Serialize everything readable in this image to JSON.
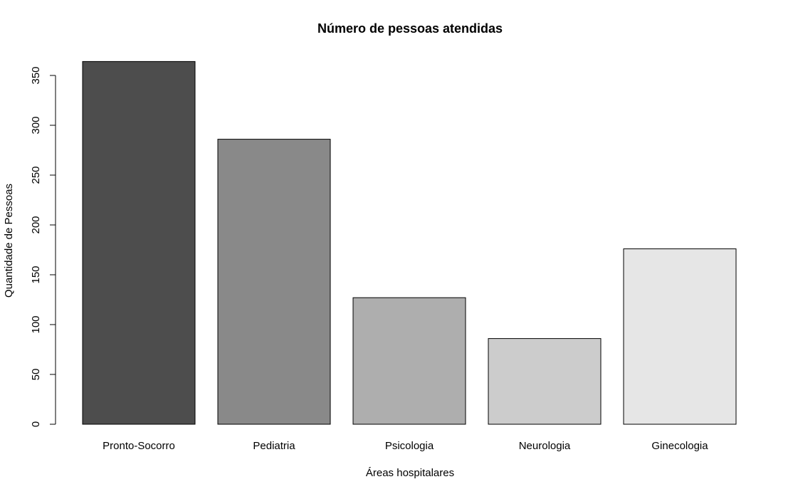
{
  "chart_data": {
    "type": "bar",
    "title": "Número de pessoas atendidas",
    "xlabel": "Áreas hospitalares",
    "ylabel": "Quantidade de Pessoas",
    "categories": [
      "Pronto-Socorro",
      "Pediatria",
      "Psicologia",
      "Neurologia",
      "Ginecologia"
    ],
    "values": [
      364,
      286,
      127,
      86,
      176
    ],
    "colors": [
      "#4d4d4d",
      "#898989",
      "#aeaeae",
      "#cccccc",
      "#e6e6e6"
    ],
    "yticks": [
      0,
      50,
      100,
      150,
      200,
      250,
      300,
      350
    ],
    "ylim": [
      0,
      364
    ],
    "grid": false,
    "legend": "none"
  }
}
